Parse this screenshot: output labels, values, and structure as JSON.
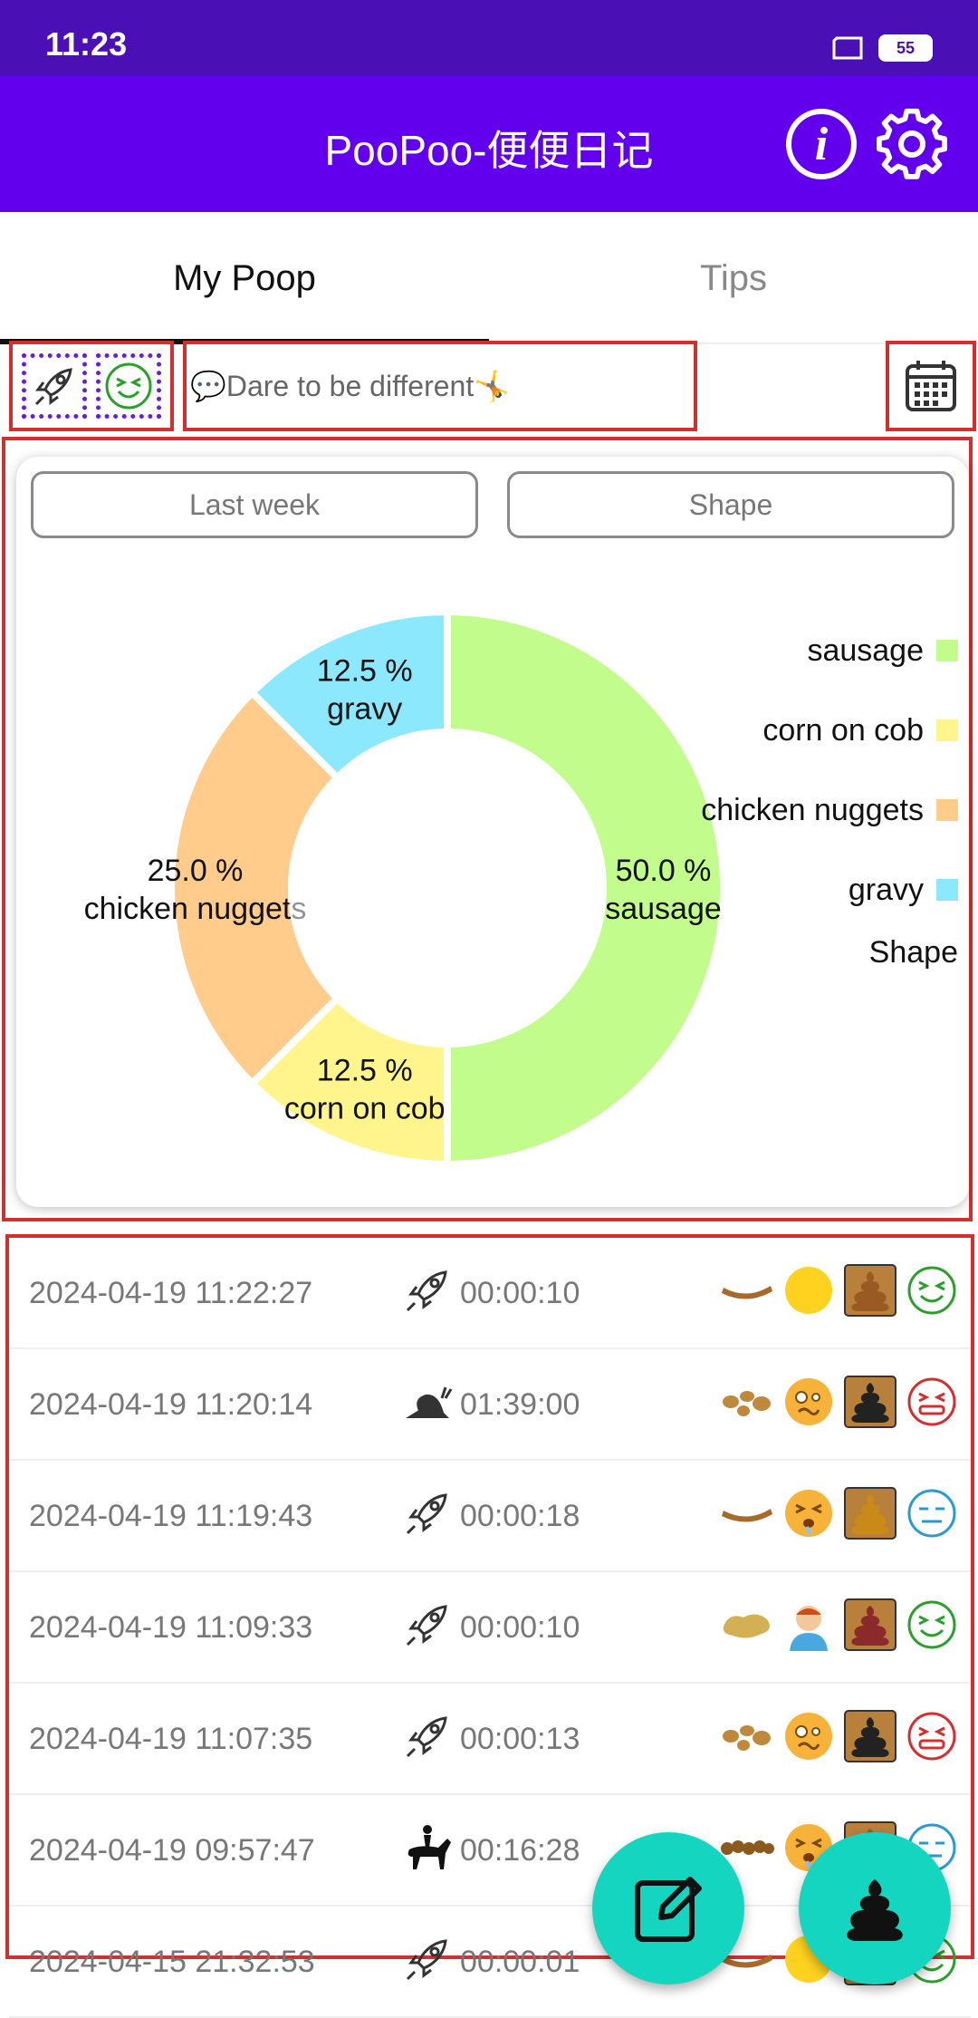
{
  "status_bar": {
    "time": "11:23",
    "battery": "55",
    "icons": [
      "window-icon",
      "battery-icon"
    ]
  },
  "app_bar": {
    "title": "PooPoo-便便日记",
    "icons": [
      "info-icon",
      "gear-icon"
    ]
  },
  "tabs": [
    {
      "label": "My Poop",
      "active": true
    },
    {
      "label": "Tips",
      "active": false
    }
  ],
  "quick_bar": {
    "quote": "💬Dare to be different🤸",
    "icons": [
      "rocket-icon",
      "face-icon",
      "calendar-icon"
    ]
  },
  "chart_selectors": {
    "range": "Last week",
    "type": "Shape"
  },
  "chart_data": {
    "type": "pie",
    "donut": true,
    "legend_title": "Shape",
    "legend_position": "right",
    "slices": [
      {
        "name": "sausage",
        "value": 50.0,
        "label": "50.0 %",
        "color": "#c2fc8c"
      },
      {
        "name": "corn on cob",
        "value": 12.5,
        "label": "12.5 %",
        "color": "#fff58c"
      },
      {
        "name": "chicken nuggets",
        "value": 25.0,
        "label": "25.0 %",
        "color": "#ffcc8c"
      },
      {
        "name": "gravy",
        "value": 12.5,
        "label": "12.5 %",
        "color": "#8ce8fc"
      }
    ]
  },
  "records": [
    {
      "datetime": "2024-04-19 11:22:27",
      "speed_icon": "rocket-icon",
      "duration": "00:00:10",
      "icons": [
        "sausage-icon",
        "neutral-face-icon",
        "brown-poop-icon",
        "happy-face-icon"
      ]
    },
    {
      "datetime": "2024-04-19 11:20:14",
      "speed_icon": "snail-icon",
      "duration": "01:39:00",
      "icons": [
        "nuggets-icon",
        "woozy-face-icon",
        "black-poop-icon",
        "angry-face-icon"
      ]
    },
    {
      "datetime": "2024-04-19 11:19:43",
      "speed_icon": "rocket-icon",
      "duration": "00:00:18",
      "icons": [
        "sausage-icon",
        "strained-face-icon",
        "orange-poop-icon",
        "meh-face-icon"
      ]
    },
    {
      "datetime": "2024-04-19 11:09:33",
      "speed_icon": "rocket-icon",
      "duration": "00:00:10",
      "icons": [
        "gravy-icon",
        "headache-person-icon",
        "red-poop-icon",
        "happy-face-icon"
      ]
    },
    {
      "datetime": "2024-04-19 11:07:35",
      "speed_icon": "rocket-icon",
      "duration": "00:00:13",
      "icons": [
        "nuggets-icon",
        "woozy-face-icon",
        "black-poop-icon",
        "angry-face-icon"
      ]
    },
    {
      "datetime": "2024-04-19 09:57:47",
      "speed_icon": "horse-rider-icon",
      "duration": "00:16:28",
      "icons": [
        "corn-icon",
        "strained-face-icon",
        "brown-poop-icon",
        "meh-face-icon"
      ]
    },
    {
      "datetime": "2024-04-15 21:32:53",
      "speed_icon": "rocket-icon",
      "duration": "00:00:01",
      "icons": [
        "sausage-icon",
        "neutral-face-icon",
        "brown-poop-icon",
        "happy-face-icon"
      ]
    }
  ],
  "fabs": [
    {
      "icon": "edit-icon"
    },
    {
      "icon": "poop-icon"
    }
  ],
  "colors": {
    "app_bar": "#6200ee",
    "status_bar": "#4a0fb5",
    "fab": "#14d6c0",
    "highlight": "#d32f2f"
  }
}
